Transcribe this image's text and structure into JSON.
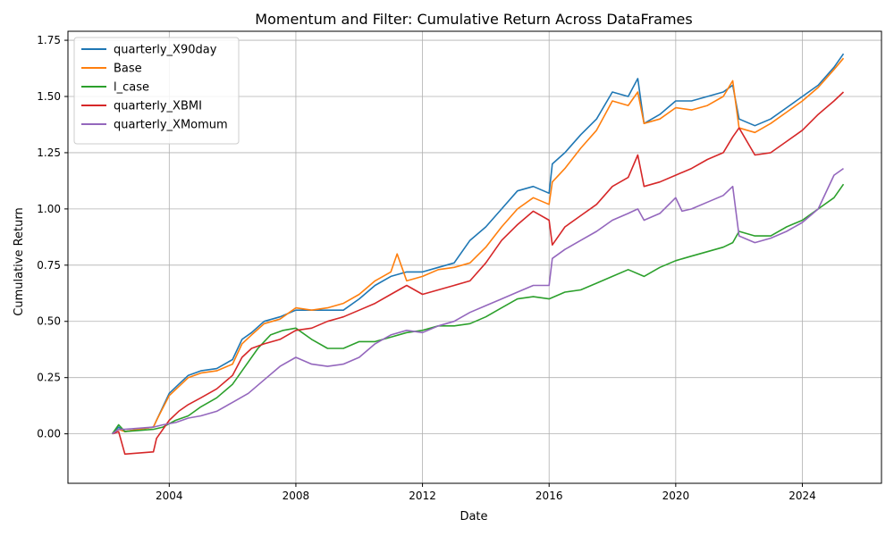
{
  "chart_data": {
    "type": "line",
    "title": "Momentum and Filter: Cumulative Return Across DataFrames",
    "xlabel": "Date",
    "ylabel": "Cumulative Return",
    "xlim": [
      2000.8,
      2026.5
    ],
    "ylim": [
      -0.22,
      1.79
    ],
    "x_ticks": [
      2004,
      2008,
      2012,
      2016,
      2020,
      2024
    ],
    "y_ticks": [
      0.0,
      0.25,
      0.5,
      0.75,
      1.0,
      1.25,
      1.5,
      1.75
    ],
    "y_tick_labels": [
      "0.00",
      "0.25",
      "0.50",
      "0.75",
      "1.00",
      "1.25",
      "1.50",
      "1.75"
    ],
    "grid": true,
    "legend_position": "top-left",
    "series": [
      {
        "name": "quarterly_X90day",
        "color": "#1f77b4",
        "x": [
          2002.2,
          2002.4,
          2002.6,
          2003.5,
          2003.6,
          2004.0,
          2004.3,
          2004.6,
          2005.0,
          2005.5,
          2006.0,
          2006.3,
          2006.6,
          2007.0,
          2007.5,
          2008.0,
          2008.5,
          2009.0,
          2009.5,
          2010.0,
          2010.5,
          2011.0,
          2011.5,
          2012.0,
          2012.5,
          2013.0,
          2013.5,
          2014.0,
          2014.5,
          2015.0,
          2015.5,
          2016.0,
          2016.1,
          2016.5,
          2017.0,
          2017.5,
          2018.0,
          2018.5,
          2018.8,
          2019.0,
          2019.5,
          2020.0,
          2020.5,
          2021.0,
          2021.5,
          2021.8,
          2022.0,
          2022.5,
          2023.0,
          2023.5,
          2024.0,
          2024.5,
          2025.0,
          2025.3
        ],
        "y": [
          0.0,
          0.03,
          0.01,
          0.03,
          0.06,
          0.18,
          0.22,
          0.26,
          0.28,
          0.29,
          0.33,
          0.42,
          0.45,
          0.5,
          0.52,
          0.55,
          0.55,
          0.55,
          0.55,
          0.6,
          0.66,
          0.7,
          0.72,
          0.72,
          0.74,
          0.76,
          0.86,
          0.92,
          1.0,
          1.08,
          1.1,
          1.07,
          1.2,
          1.25,
          1.33,
          1.4,
          1.52,
          1.5,
          1.58,
          1.38,
          1.42,
          1.48,
          1.48,
          1.5,
          1.52,
          1.55,
          1.4,
          1.37,
          1.4,
          1.45,
          1.5,
          1.55,
          1.63,
          1.69
        ]
      },
      {
        "name": "Base",
        "color": "#ff7f0e",
        "x": [
          2002.2,
          2002.4,
          2002.6,
          2003.5,
          2003.6,
          2004.0,
          2004.3,
          2004.6,
          2005.0,
          2005.5,
          2006.0,
          2006.3,
          2006.6,
          2007.0,
          2007.5,
          2008.0,
          2008.5,
          2009.0,
          2009.5,
          2010.0,
          2010.5,
          2011.0,
          2011.2,
          2011.5,
          2012.0,
          2012.5,
          2013.0,
          2013.5,
          2014.0,
          2014.5,
          2015.0,
          2015.5,
          2016.0,
          2016.1,
          2016.5,
          2017.0,
          2017.5,
          2018.0,
          2018.5,
          2018.8,
          2019.0,
          2019.5,
          2020.0,
          2020.5,
          2021.0,
          2021.5,
          2021.8,
          2022.0,
          2022.5,
          2023.0,
          2023.5,
          2024.0,
          2024.5,
          2025.0,
          2025.3
        ],
        "y": [
          0.0,
          0.02,
          0.01,
          0.03,
          0.06,
          0.17,
          0.21,
          0.25,
          0.27,
          0.28,
          0.31,
          0.4,
          0.44,
          0.49,
          0.51,
          0.56,
          0.55,
          0.56,
          0.58,
          0.62,
          0.68,
          0.72,
          0.8,
          0.68,
          0.7,
          0.73,
          0.74,
          0.76,
          0.83,
          0.92,
          1.0,
          1.05,
          1.02,
          1.12,
          1.18,
          1.27,
          1.35,
          1.48,
          1.46,
          1.52,
          1.38,
          1.4,
          1.45,
          1.44,
          1.46,
          1.5,
          1.57,
          1.36,
          1.34,
          1.38,
          1.43,
          1.48,
          1.54,
          1.62,
          1.67
        ]
      },
      {
        "name": "l_case",
        "color": "#2ca02c",
        "x": [
          2002.2,
          2002.4,
          2002.6,
          2003.5,
          2003.8,
          2004.2,
          2004.6,
          2005.0,
          2005.5,
          2006.0,
          2006.4,
          2006.8,
          2007.2,
          2007.6,
          2008.0,
          2008.5,
          2009.0,
          2009.5,
          2010.0,
          2010.5,
          2011.0,
          2011.5,
          2012.0,
          2012.5,
          2013.0,
          2013.5,
          2014.0,
          2014.5,
          2015.0,
          2015.5,
          2016.0,
          2016.5,
          2017.0,
          2017.5,
          2018.0,
          2018.5,
          2019.0,
          2019.5,
          2020.0,
          2020.5,
          2021.0,
          2021.5,
          2021.8,
          2022.0,
          2022.5,
          2023.0,
          2023.5,
          2024.0,
          2024.5,
          2025.0,
          2025.3
        ],
        "y": [
          0.0,
          0.04,
          0.01,
          0.02,
          0.03,
          0.06,
          0.08,
          0.12,
          0.16,
          0.22,
          0.3,
          0.38,
          0.44,
          0.46,
          0.47,
          0.42,
          0.38,
          0.38,
          0.41,
          0.41,
          0.43,
          0.45,
          0.46,
          0.48,
          0.48,
          0.49,
          0.52,
          0.56,
          0.6,
          0.61,
          0.6,
          0.63,
          0.64,
          0.67,
          0.7,
          0.73,
          0.7,
          0.74,
          0.77,
          0.79,
          0.81,
          0.83,
          0.85,
          0.9,
          0.88,
          0.88,
          0.92,
          0.95,
          1.0,
          1.05,
          1.11
        ]
      },
      {
        "name": "quarterly_XBMI",
        "color": "#d62728",
        "x": [
          2002.2,
          2002.4,
          2002.6,
          2003.5,
          2003.6,
          2004.0,
          2004.3,
          2004.6,
          2005.0,
          2005.5,
          2006.0,
          2006.3,
          2006.6,
          2007.0,
          2007.5,
          2008.0,
          2008.5,
          2009.0,
          2009.5,
          2010.0,
          2010.5,
          2011.0,
          2011.5,
          2012.0,
          2012.5,
          2013.0,
          2013.5,
          2014.0,
          2014.5,
          2015.0,
          2015.5,
          2016.0,
          2016.1,
          2016.5,
          2017.0,
          2017.5,
          2018.0,
          2018.5,
          2018.8,
          2019.0,
          2019.5,
          2020.0,
          2020.5,
          2021.0,
          2021.5,
          2021.8,
          2022.0,
          2022.5,
          2023.0,
          2023.5,
          2024.0,
          2024.5,
          2025.0,
          2025.3
        ],
        "y": [
          0.0,
          0.01,
          -0.09,
          -0.08,
          -0.02,
          0.06,
          0.1,
          0.13,
          0.16,
          0.2,
          0.26,
          0.34,
          0.38,
          0.4,
          0.42,
          0.46,
          0.47,
          0.5,
          0.52,
          0.55,
          0.58,
          0.62,
          0.66,
          0.62,
          0.64,
          0.66,
          0.68,
          0.76,
          0.86,
          0.93,
          0.99,
          0.95,
          0.84,
          0.92,
          0.97,
          1.02,
          1.1,
          1.14,
          1.24,
          1.1,
          1.12,
          1.15,
          1.18,
          1.22,
          1.25,
          1.32,
          1.36,
          1.24,
          1.25,
          1.3,
          1.35,
          1.42,
          1.48,
          1.52
        ]
      },
      {
        "name": "quarterly_XMomum",
        "color": "#9467bd",
        "x": [
          2002.2,
          2002.4,
          2002.6,
          2003.5,
          2003.8,
          2004.2,
          2004.6,
          2005.0,
          2005.5,
          2006.0,
          2006.5,
          2007.0,
          2007.5,
          2008.0,
          2008.5,
          2009.0,
          2009.5,
          2010.0,
          2010.5,
          2011.0,
          2011.5,
          2012.0,
          2012.5,
          2013.0,
          2013.5,
          2014.0,
          2014.5,
          2015.0,
          2015.5,
          2016.0,
          2016.1,
          2016.5,
          2017.0,
          2017.5,
          2018.0,
          2018.5,
          2018.8,
          2019.0,
          2019.5,
          2020.0,
          2020.2,
          2020.5,
          2021.0,
          2021.5,
          2021.8,
          2022.0,
          2022.5,
          2023.0,
          2023.5,
          2024.0,
          2024.5,
          2025.0,
          2025.3
        ],
        "y": [
          0.0,
          0.02,
          0.02,
          0.03,
          0.04,
          0.05,
          0.07,
          0.08,
          0.1,
          0.14,
          0.18,
          0.24,
          0.3,
          0.34,
          0.31,
          0.3,
          0.31,
          0.34,
          0.4,
          0.44,
          0.46,
          0.45,
          0.48,
          0.5,
          0.54,
          0.57,
          0.6,
          0.63,
          0.66,
          0.66,
          0.78,
          0.82,
          0.86,
          0.9,
          0.95,
          0.98,
          1.0,
          0.95,
          0.98,
          1.05,
          0.99,
          1.0,
          1.03,
          1.06,
          1.1,
          0.88,
          0.85,
          0.87,
          0.9,
          0.94,
          1.0,
          1.15,
          1.18
        ]
      }
    ]
  }
}
